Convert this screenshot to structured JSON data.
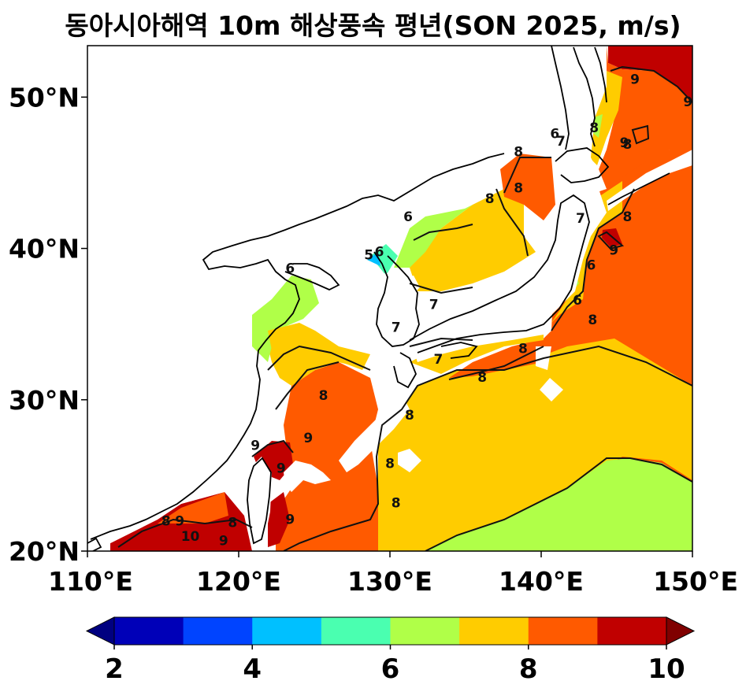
{
  "title": "동아시아해역 10m 해상풍속 평년(SON 2025, m/s)",
  "lat_labels": [
    "50°N",
    "40°N",
    "30°N",
    "20°N"
  ],
  "lon_labels": [
    "110°E",
    "120°E",
    "130°E",
    "140°E",
    "150°E"
  ],
  "colorbar": {
    "tick_labels": [
      "2",
      "4",
      "6",
      "8",
      "10"
    ],
    "levels": [
      2,
      3,
      4,
      5,
      6,
      7,
      8,
      9,
      10
    ],
    "colors": [
      "#0000b8",
      "#0044ff",
      "#00c0ff",
      "#4affb0",
      "#b0ff48",
      "#ffcc00",
      "#ff5a00",
      "#c00000"
    ],
    "under_color": "#000080",
    "over_color": "#800000"
  },
  "contour_labels": [
    {
      "text": "9",
      "lon": 146.2,
      "lat": 51.2
    },
    {
      "text": "9",
      "lon": 149.7,
      "lat": 49.7
    },
    {
      "text": "8",
      "lon": 143.5,
      "lat": 48.0
    },
    {
      "text": "6",
      "lon": 140.9,
      "lat": 47.6
    },
    {
      "text": "7",
      "lon": 141.3,
      "lat": 47.1
    },
    {
      "text": "9",
      "lon": 145.5,
      "lat": 47.0
    },
    {
      "text": "8",
      "lon": 145.7,
      "lat": 46.9
    },
    {
      "text": "8",
      "lon": 138.5,
      "lat": 46.4
    },
    {
      "text": "8",
      "lon": 138.5,
      "lat": 44.0
    },
    {
      "text": "8",
      "lon": 136.6,
      "lat": 43.3
    },
    {
      "text": "7",
      "lon": 142.6,
      "lat": 42.0
    },
    {
      "text": "8",
      "lon": 145.7,
      "lat": 42.1
    },
    {
      "text": "6",
      "lon": 131.2,
      "lat": 42.1
    },
    {
      "text": "9",
      "lon": 144.8,
      "lat": 39.9
    },
    {
      "text": "5",
      "lon": 128.6,
      "lat": 39.6
    },
    {
      "text": "6",
      "lon": 129.3,
      "lat": 39.8
    },
    {
      "text": "6",
      "lon": 143.3,
      "lat": 38.9
    },
    {
      "text": "6",
      "lon": 123.4,
      "lat": 38.7
    },
    {
      "text": "6",
      "lon": 142.4,
      "lat": 36.6
    },
    {
      "text": "7",
      "lon": 132.9,
      "lat": 36.3
    },
    {
      "text": "8",
      "lon": 143.4,
      "lat": 35.3
    },
    {
      "text": "7",
      "lon": 130.4,
      "lat": 34.8
    },
    {
      "text": "8",
      "lon": 138.8,
      "lat": 33.4
    },
    {
      "text": "7",
      "lon": 133.2,
      "lat": 32.7
    },
    {
      "text": "8",
      "lon": 136.1,
      "lat": 31.5
    },
    {
      "text": "8",
      "lon": 125.6,
      "lat": 30.3
    },
    {
      "text": "8",
      "lon": 131.3,
      "lat": 29.0
    },
    {
      "text": "9",
      "lon": 124.6,
      "lat": 27.5
    },
    {
      "text": "9",
      "lon": 121.1,
      "lat": 27.0
    },
    {
      "text": "9",
      "lon": 122.8,
      "lat": 25.5
    },
    {
      "text": "8",
      "lon": 130.0,
      "lat": 25.8
    },
    {
      "text": "8",
      "lon": 130.4,
      "lat": 23.2
    },
    {
      "text": "9",
      "lon": 123.4,
      "lat": 22.1
    },
    {
      "text": "8",
      "lon": 115.2,
      "lat": 22.0
    },
    {
      "text": "9",
      "lon": 116.1,
      "lat": 22.0
    },
    {
      "text": "8",
      "lon": 119.6,
      "lat": 21.9
    },
    {
      "text": "10",
      "lon": 116.8,
      "lat": 21.0
    },
    {
      "text": "9",
      "lon": 119.0,
      "lat": 20.7
    }
  ]
}
